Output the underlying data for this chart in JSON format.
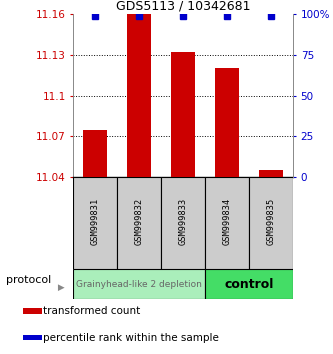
{
  "title": "GDS5113 / 10342681",
  "samples": [
    "GSM999831",
    "GSM999832",
    "GSM999833",
    "GSM999834",
    "GSM999835"
  ],
  "bar_values": [
    11.075,
    11.16,
    11.132,
    11.12,
    11.045
  ],
  "percentile_values": [
    99,
    99,
    99,
    99,
    99
  ],
  "bar_color": "#cc0000",
  "dot_color": "#0000cc",
  "ylim_left": [
    11.04,
    11.16
  ],
  "ylim_right": [
    0,
    100
  ],
  "yticks_left": [
    11.04,
    11.07,
    11.1,
    11.13,
    11.16
  ],
  "yticks_right": [
    0,
    25,
    50,
    75,
    100
  ],
  "ytick_labels_left": [
    "11.04",
    "11.07",
    "11.1",
    "11.13",
    "11.16"
  ],
  "ytick_labels_right": [
    "0",
    "25",
    "50",
    "75",
    "100%"
  ],
  "groups": [
    {
      "label": "Grainyhead-like 2 depletion",
      "n_samples": 3,
      "color": "#aaeebb",
      "text_color": "#666666",
      "text_size": 6.5
    },
    {
      "label": "control",
      "n_samples": 2,
      "color": "#44dd66",
      "text_color": "#000000",
      "text_size": 9
    }
  ],
  "protocol_label": "protocol",
  "legend_items": [
    {
      "color": "#cc0000",
      "label": "transformed count"
    },
    {
      "color": "#0000cc",
      "label": "percentile rank within the sample"
    }
  ],
  "bar_width": 0.55,
  "background_plot": "#ffffff",
  "tick_label_color_left": "#cc0000",
  "tick_label_color_right": "#0000cc",
  "grid_linestyle": ":"
}
